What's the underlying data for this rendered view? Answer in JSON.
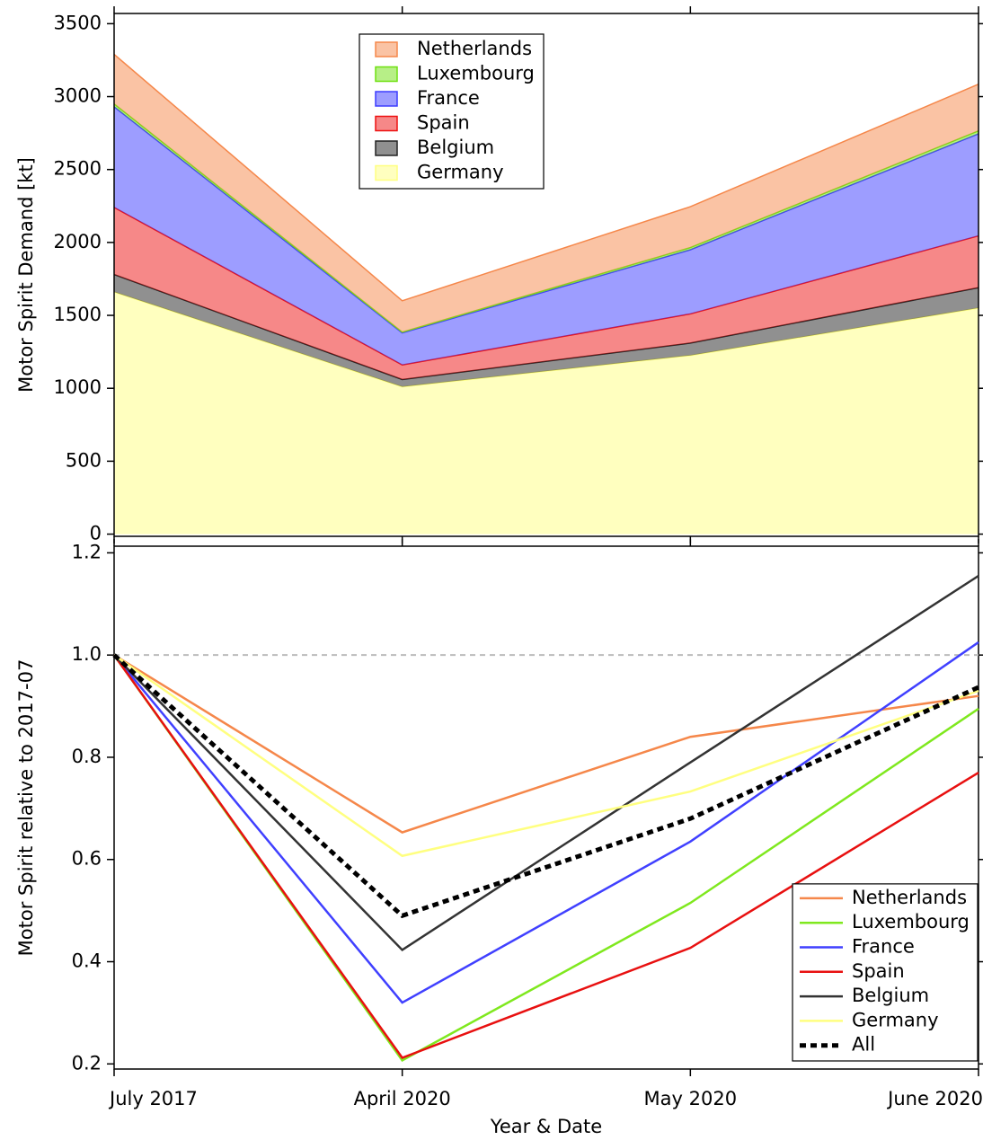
{
  "chart_data": [
    {
      "type": "stacked_area",
      "y_label": "Motor Spirit Demand [kt]",
      "ylim": [
        -15,
        3570
      ],
      "yticks": [
        0,
        500,
        1000,
        1500,
        2000,
        2500,
        3000,
        3500
      ],
      "legend": "top-center",
      "series": [
        {
          "name": "Netherlands",
          "color": "#f5874a",
          "values": [
            340,
            215,
            280,
            320
          ]
        },
        {
          "name": "Luxembourg",
          "color": "#6fe010",
          "values": [
            20,
            5,
            15,
            20
          ]
        },
        {
          "name": "France",
          "color": "#3c3cff",
          "values": [
            690,
            220,
            440,
            700
          ]
        },
        {
          "name": "Spain",
          "color": "#ee1111",
          "values": [
            460,
            100,
            200,
            355
          ]
        },
        {
          "name": "Belgium",
          "color": "#222222",
          "values": [
            120,
            50,
            85,
            140
          ]
        },
        {
          "name": "Germany",
          "color": "#ffff80",
          "values": [
            1660,
            1010,
            1225,
            1550
          ]
        }
      ]
    },
    {
      "type": "line",
      "x_label": "Year & Date",
      "y_label": "Motor Spirit relative to 2017-07",
      "categories": [
        "July 2017",
        "April 2020",
        "May 2020",
        "June 2020"
      ],
      "ylim": [
        0.19,
        1.213
      ],
      "yticks": [
        0.2,
        0.4,
        0.6,
        0.8,
        {
          "value": 1,
          "label": "1.0"
        },
        1.2
      ],
      "reference_line": 1,
      "legend": "bottom-right",
      "series": [
        {
          "name": "Netherlands",
          "color": "#f5874a",
          "values": [
            1,
            0.653,
            0.84,
            0.92
          ]
        },
        {
          "name": "Luxembourg",
          "color": "#7fe81e",
          "values": [
            1,
            0.207,
            0.515,
            0.895
          ]
        },
        {
          "name": "France",
          "color": "#4040ff",
          "values": [
            1,
            0.32,
            0.635,
            1.025
          ]
        },
        {
          "name": "Spain",
          "color": "#e81010",
          "values": [
            1,
            0.212,
            0.427,
            0.77
          ]
        },
        {
          "name": "Belgium",
          "color": "#333333",
          "values": [
            1,
            0.423,
            0.79,
            1.155
          ]
        },
        {
          "name": "Germany",
          "color": "#ffff80",
          "values": [
            1,
            0.607,
            0.733,
            0.93
          ]
        },
        {
          "name": "All",
          "color": "#000000",
          "dashed": true,
          "values": [
            1,
            0.49,
            0.68,
            0.937
          ]
        }
      ]
    }
  ]
}
